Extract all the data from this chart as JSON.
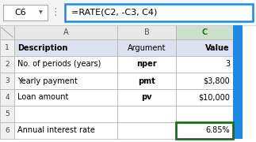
{
  "formula_bar_cell": "C6",
  "formula_bar_formula": "=RATE(C2, -C3, C4)",
  "col_labels": [
    "A",
    "B",
    "C"
  ],
  "row_labels": [
    "1",
    "2",
    "3",
    "4",
    "5",
    "6"
  ],
  "rows": [
    [
      "Description",
      "Argument",
      "Value"
    ],
    [
      "No. of periods (years)",
      "nper",
      "3"
    ],
    [
      "Yearly payment",
      "pmt",
      "$3,800"
    ],
    [
      "Loan amount",
      "pv",
      "$10,000"
    ],
    [
      "",
      "",
      ""
    ],
    [
      "Annual interest rate",
      "",
      "6.85%"
    ]
  ],
  "col_header_bg": "#e8e8e8",
  "active_col_header_bg": "#cce0cc",
  "row_header_bg": "#f0f0f0",
  "row1_bg": "#dde0ef",
  "grid_color": "#b0b0b0",
  "formula_border_color": "#1e88e5",
  "active_cell_border": "#1a6e1a",
  "scroll_color": "#1e88e5",
  "font_size": 7.0,
  "header_font_size": 7.5,
  "formula_font_size": 8.0,
  "fb_font_size": 8.0
}
